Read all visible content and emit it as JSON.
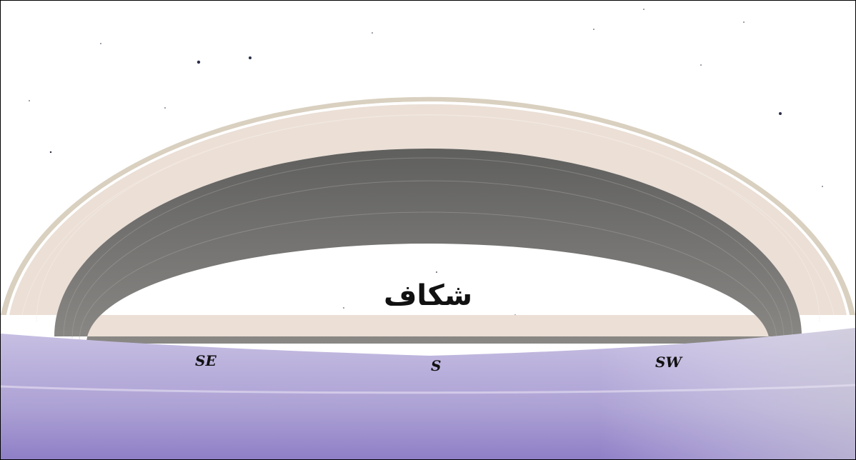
{
  "scene": {
    "gap_label": "شكاف",
    "directions": {
      "southeast": "SE",
      "south": "S",
      "southwest": "SW"
    },
    "colors": {
      "sky": "#ffffff",
      "outer_ring": "#d9d0c0",
      "middle_ring": "#ebdfd6",
      "inner_ring": "#6f6e6c",
      "ground": "#b7acd9"
    }
  }
}
